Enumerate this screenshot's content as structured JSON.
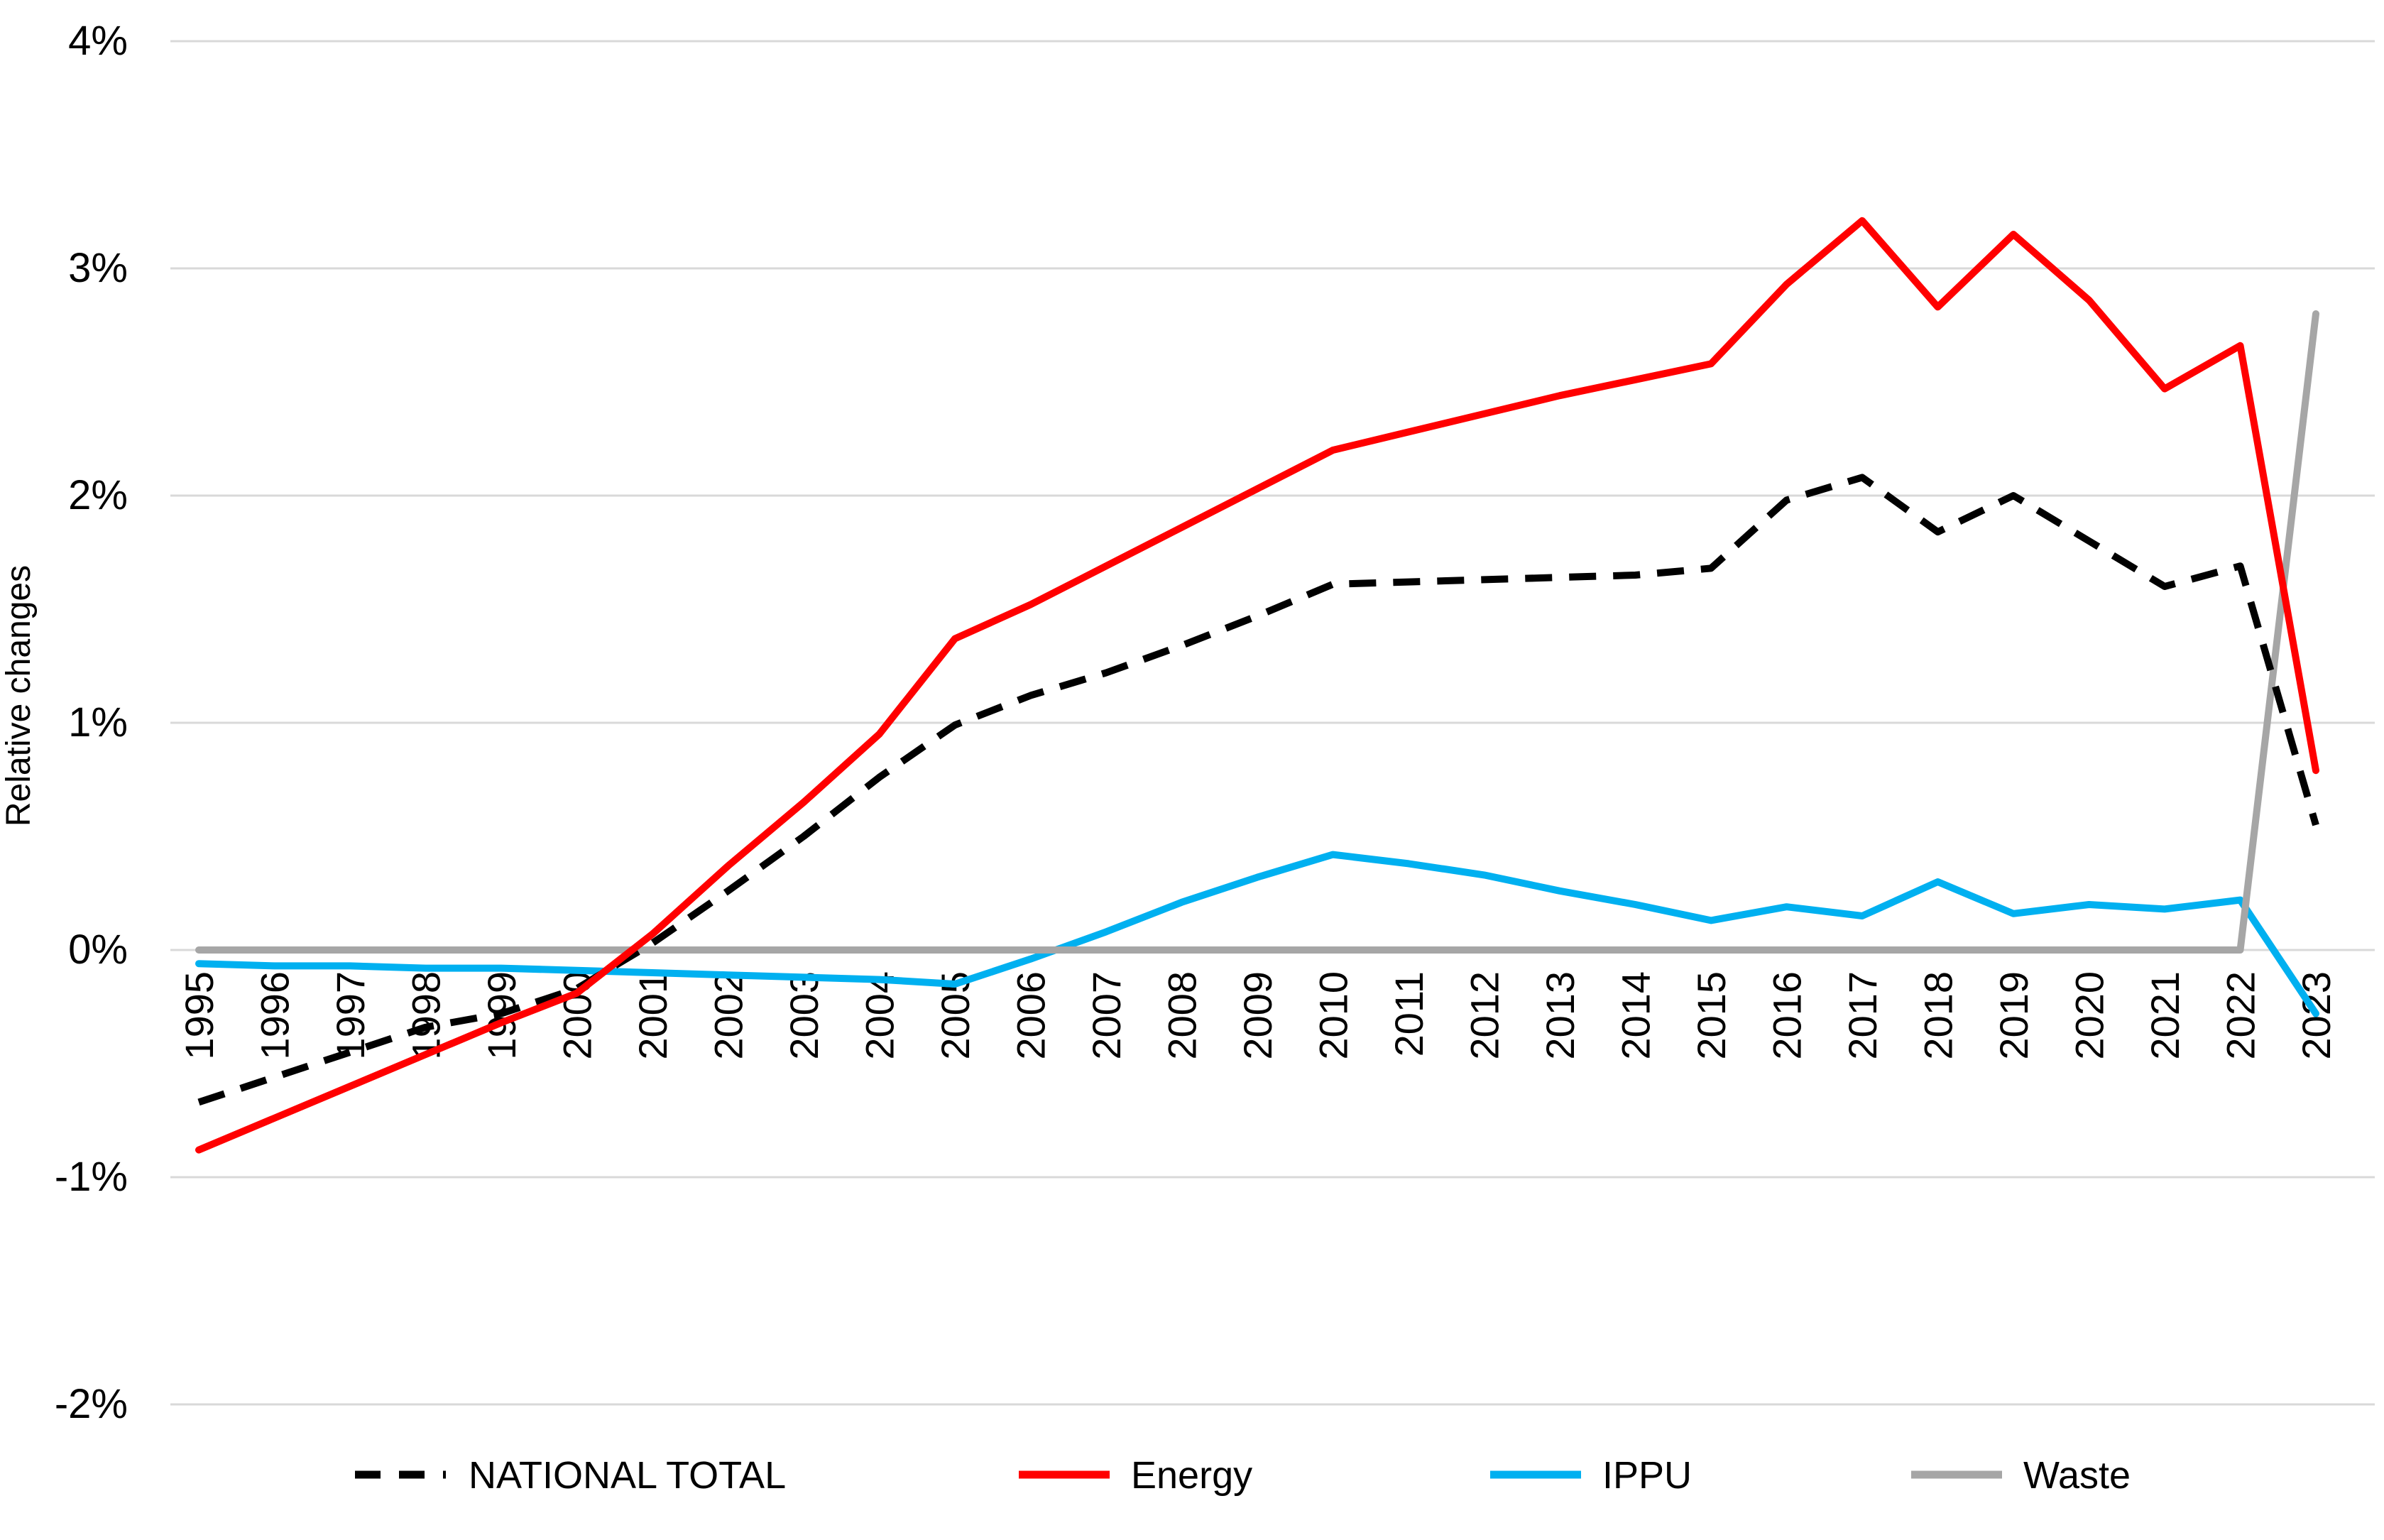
{
  "page": {
    "background": "#FFFFFF"
  },
  "chart_data": {
    "type": "line",
    "title": "",
    "xlabel": "",
    "ylabel": "Relative changes",
    "grid": "horizontal",
    "gridline_color": "#D9D9D9",
    "legend_position": "bottom",
    "ylim": [
      -2.4,
      4.1
    ],
    "y_ticks": [
      "4%",
      "3%",
      "2%",
      "1%",
      "0%",
      "-1%",
      "-2%"
    ],
    "y_tick_values": [
      4,
      3,
      2,
      1,
      0,
      -1,
      -2
    ],
    "x": [
      "1995",
      "1996",
      "1997",
      "1998",
      "1999",
      "2000",
      "2001",
      "2002",
      "2003",
      "2004",
      "2005",
      "2006",
      "2007",
      "2008",
      "2009",
      "2010",
      "2011",
      "2012",
      "2013",
      "2014",
      "2015",
      "2016",
      "2017",
      "2018",
      "2019",
      "2020",
      "2021",
      "2022",
      "2023"
    ],
    "series": [
      {
        "name": "NATIONAL TOTAL",
        "color": "#000000",
        "style": "dashed",
        "values": [
          -0.67,
          -0.56,
          -0.45,
          -0.34,
          -0.28,
          -0.17,
          0.03,
          0.26,
          0.5,
          0.76,
          0.99,
          1.12,
          1.22,
          1.34,
          1.47,
          1.61,
          1.62,
          1.63,
          1.64,
          1.65,
          1.68,
          1.98,
          2.08,
          1.84,
          2.0,
          1.8,
          1.6,
          1.69,
          0.55
        ]
      },
      {
        "name": "Energy",
        "color": "#FF0000",
        "style": "solid",
        "values": [
          -0.88,
          -0.74,
          -0.6,
          -0.46,
          -0.32,
          -0.19,
          0.07,
          0.37,
          0.65,
          0.95,
          1.37,
          1.52,
          1.69,
          1.86,
          2.03,
          2.2,
          2.28,
          2.36,
          2.44,
          2.51,
          2.58,
          2.93,
          3.21,
          2.83,
          3.15,
          2.86,
          2.47,
          2.66,
          0.79
        ]
      },
      {
        "name": "IPPU",
        "color": "#00B0F0",
        "style": "solid",
        "values": [
          -0.06,
          -0.07,
          -0.07,
          -0.08,
          -0.08,
          -0.09,
          -0.1,
          -0.11,
          -0.12,
          -0.13,
          -0.15,
          -0.04,
          0.08,
          0.21,
          0.32,
          0.42,
          0.38,
          0.33,
          0.26,
          0.2,
          0.13,
          0.19,
          0.15,
          0.3,
          0.16,
          0.2,
          0.18,
          0.22,
          -0.28
        ]
      },
      {
        "name": "Waste",
        "color": "#A6A6A6",
        "style": "solid",
        "values": [
          0.0,
          0.0,
          0.0,
          0.0,
          0.0,
          0.0,
          0.0,
          0.0,
          0.0,
          0.0,
          0.0,
          0.0,
          0.0,
          0.0,
          0.0,
          0.0,
          0.0,
          0.0,
          0.0,
          0.0,
          0.0,
          0.0,
          0.0,
          0.0,
          0.0,
          0.0,
          0.0,
          0.0,
          2.8
        ]
      }
    ]
  }
}
